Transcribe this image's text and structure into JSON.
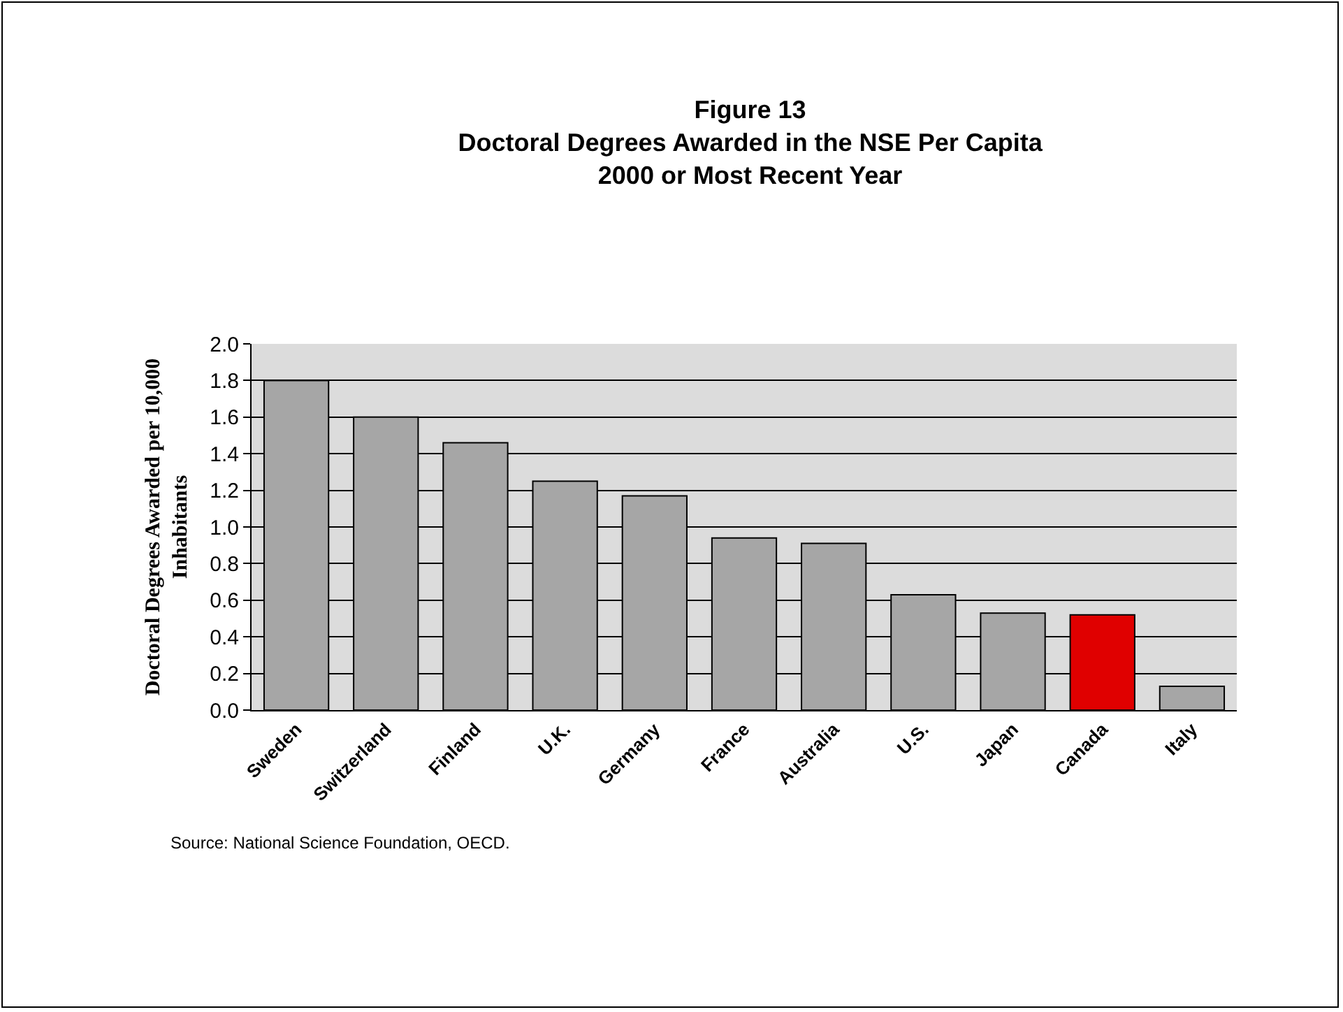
{
  "chart_data": {
    "type": "bar",
    "title": "Figure 13\nDoctoral Degrees Awarded in the NSE Per Capita\n2000 or Most Recent Year",
    "ylabel": "Doctoral Degrees Awarded per 10,000\nInhabitants",
    "categories": [
      "Sweden",
      "Switzerland",
      "Finland",
      "U.K.",
      "Germany",
      "France",
      "Australia",
      "U.S.",
      "Japan",
      "Canada",
      "Italy"
    ],
    "values": [
      1.8,
      1.6,
      1.46,
      1.25,
      1.17,
      0.94,
      0.91,
      0.63,
      0.53,
      0.52,
      0.13
    ],
    "colors": [
      "#a6a6a6",
      "#a6a6a6",
      "#a6a6a6",
      "#a6a6a6",
      "#a6a6a6",
      "#a6a6a6",
      "#a6a6a6",
      "#a6a6a6",
      "#a6a6a6",
      "#e00000",
      "#a6a6a6"
    ],
    "ylim": [
      0,
      2.0
    ],
    "yticks": [
      {
        "value": 0,
        "label": "0.0"
      },
      {
        "value": 0.2,
        "label": "0.2"
      },
      {
        "value": 0.4,
        "label": "0.4"
      },
      {
        "value": 0.6,
        "label": "0.6"
      },
      {
        "value": 0.8,
        "label": "0.8"
      },
      {
        "value": 1.0,
        "label": "1.0"
      },
      {
        "value": 1.2,
        "label": "1.2"
      },
      {
        "value": 1.4,
        "label": "1.4"
      },
      {
        "value": 1.6,
        "label": "1.6"
      },
      {
        "value": 1.8,
        "label": "1.8"
      },
      {
        "value": 2.0,
        "label": "2.0"
      }
    ],
    "grid": "y",
    "annotations": [
      "Source: National Science Foundation, OECD."
    ]
  }
}
